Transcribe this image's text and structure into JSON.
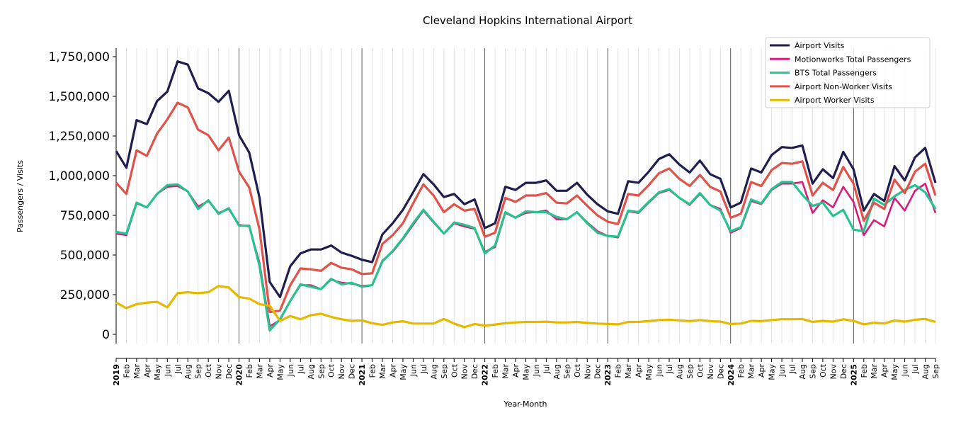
{
  "chart_data": {
    "type": "line",
    "title": "Cleveland Hopkins International Airport",
    "xlabel": "Year-Month",
    "ylabel": "Passengers / Visits",
    "ylim": [
      -60000,
      1800000
    ],
    "y_ticks": [
      0,
      250000,
      500000,
      750000,
      1000000,
      1250000,
      1500000,
      1750000
    ],
    "y_tick_labels": [
      "0",
      "250,000",
      "500,000",
      "750,000",
      "1,000,000",
      "1,250,000",
      "1,500,000",
      "1,750,000"
    ],
    "grid": "vertical monthly gridlines, darker lines at each January",
    "legend_position": "top-right",
    "x_tick_labels": [
      "2019",
      "Feb",
      "Mar",
      "Apr",
      "May",
      "Jun",
      "Jul",
      "Aug",
      "Sep",
      "Oct",
      "Nov",
      "Dec",
      "2020",
      "Feb",
      "Mar",
      "Apr",
      "May",
      "Jun",
      "Jul",
      "Aug",
      "Sep",
      "Oct",
      "Nov",
      "Dec",
      "2021",
      "Feb",
      "Mar",
      "Apr",
      "May",
      "Jun",
      "Jul",
      "Aug",
      "Sep",
      "Oct",
      "Nov",
      "Dec",
      "2022",
      "Feb",
      "Mar",
      "Apr",
      "May",
      "Jun",
      "Jul",
      "Aug",
      "Sep",
      "Oct",
      "Nov",
      "Dec",
      "2023",
      "Feb",
      "Mar",
      "Apr",
      "May",
      "Jun",
      "Jul",
      "Aug",
      "Sep",
      "Oct",
      "Nov",
      "Dec",
      "2024",
      "Feb",
      "Mar",
      "Apr",
      "May",
      "Jun",
      "Jul",
      "Aug",
      "Sep",
      "Oct",
      "Nov",
      "Dec",
      "2025",
      "Feb",
      "Mar",
      "Apr",
      "May",
      "Jun",
      "Jul",
      "Aug",
      "Sep"
    ],
    "series": [
      {
        "name": "Airport Visits",
        "color": "#1f1f4f",
        "values": [
          1155000,
          1050000,
          1350000,
          1325000,
          1470000,
          1530000,
          1720000,
          1700000,
          1550000,
          1520000,
          1465000,
          1535000,
          1255000,
          1145000,
          860000,
          330000,
          235000,
          430000,
          510000,
          535000,
          535000,
          560000,
          515000,
          495000,
          470000,
          455000,
          630000,
          700000,
          785000,
          895000,
          1010000,
          945000,
          865000,
          885000,
          820000,
          850000,
          670000,
          700000,
          930000,
          910000,
          955000,
          955000,
          970000,
          905000,
          905000,
          955000,
          880000,
          820000,
          775000,
          760000,
          965000,
          955000,
          1025000,
          1105000,
          1135000,
          1070000,
          1020000,
          1095000,
          1010000,
          980000,
          800000,
          830000,
          1045000,
          1020000,
          1130000,
          1180000,
          1175000,
          1190000,
          950000,
          1040000,
          985000,
          1150000,
          1040000,
          780000,
          885000,
          840000,
          1060000,
          970000,
          1115000,
          1175000,
          955000
        ]
      },
      {
        "name": "Motionworks Total Passengers",
        "color": "#d81b7a",
        "values": [
          635000,
          625000,
          825000,
          800000,
          885000,
          930000,
          935000,
          900000,
          805000,
          840000,
          765000,
          790000,
          690000,
          680000,
          450000,
          50000,
          90000,
          210000,
          310000,
          310000,
          285000,
          345000,
          325000,
          320000,
          305000,
          310000,
          465000,
          520000,
          600000,
          690000,
          780000,
          705000,
          635000,
          700000,
          680000,
          665000,
          520000,
          550000,
          765000,
          735000,
          765000,
          770000,
          780000,
          725000,
          725000,
          770000,
          705000,
          650000,
          620000,
          610000,
          775000,
          765000,
          830000,
          890000,
          910000,
          860000,
          815000,
          885000,
          815000,
          790000,
          640000,
          670000,
          840000,
          820000,
          910000,
          950000,
          950000,
          960000,
          765000,
          845000,
          800000,
          930000,
          835000,
          625000,
          720000,
          680000,
          860000,
          780000,
          905000,
          950000,
          765000
        ]
      },
      {
        "name": "BTS Total Passengers",
        "color": "#26c28f",
        "values": [
          645000,
          635000,
          830000,
          800000,
          885000,
          940000,
          945000,
          900000,
          790000,
          845000,
          760000,
          795000,
          685000,
          685000,
          430000,
          25000,
          95000,
          210000,
          315000,
          300000,
          285000,
          350000,
          315000,
          325000,
          300000,
          310000,
          460000,
          525000,
          605000,
          700000,
          785000,
          710000,
          635000,
          705000,
          690000,
          670000,
          510000,
          560000,
          770000,
          735000,
          775000,
          770000,
          770000,
          740000,
          725000,
          770000,
          700000,
          640000,
          620000,
          615000,
          780000,
          770000,
          835000,
          895000,
          915000,
          860000,
          820000,
          890000,
          815000,
          780000,
          650000,
          675000,
          850000,
          825000,
          915000,
          960000,
          960000,
          880000,
          810000,
          830000,
          745000,
          785000,
          660000,
          650000,
          855000,
          815000,
          870000,
          910000,
          940000,
          895000,
          790000
        ]
      },
      {
        "name": "Airport Non-Worker Visits",
        "color": "#e0524a",
        "values": [
          955000,
          885000,
          1160000,
          1125000,
          1265000,
          1355000,
          1460000,
          1430000,
          1290000,
          1255000,
          1160000,
          1240000,
          1025000,
          925000,
          660000,
          140000,
          150000,
          310000,
          415000,
          410000,
          400000,
          450000,
          420000,
          410000,
          380000,
          385000,
          570000,
          625000,
          700000,
          825000,
          945000,
          875000,
          770000,
          820000,
          780000,
          790000,
          615000,
          640000,
          860000,
          835000,
          875000,
          875000,
          890000,
          830000,
          825000,
          875000,
          810000,
          750000,
          710000,
          695000,
          885000,
          875000,
          940000,
          1015000,
          1045000,
          980000,
          935000,
          1005000,
          930000,
          900000,
          735000,
          760000,
          960000,
          935000,
          1035000,
          1080000,
          1075000,
          1090000,
          875000,
          955000,
          910000,
          1055000,
          950000,
          715000,
          830000,
          790000,
          975000,
          890000,
          1025000,
          1075000,
          875000
        ]
      },
      {
        "name": "Airport Worker Visits",
        "color": "#e6b800",
        "values": [
          200000,
          165000,
          190000,
          200000,
          205000,
          170000,
          260000,
          265000,
          260000,
          265000,
          305000,
          295000,
          235000,
          225000,
          190000,
          180000,
          85000,
          115000,
          95000,
          120000,
          130000,
          110000,
          95000,
          85000,
          88000,
          70000,
          60000,
          75000,
          82000,
          68000,
          68000,
          68000,
          97000,
          68000,
          45000,
          65000,
          55000,
          62000,
          70000,
          75000,
          78000,
          78000,
          80000,
          75000,
          75000,
          78000,
          72000,
          68000,
          65000,
          63000,
          78000,
          78000,
          83000,
          90000,
          92000,
          88000,
          83000,
          90000,
          83000,
          80000,
          65000,
          68000,
          85000,
          83000,
          90000,
          95000,
          95000,
          97000,
          78000,
          85000,
          80000,
          95000,
          85000,
          63000,
          73000,
          68000,
          88000,
          80000,
          92000,
          97000,
          78000
        ]
      }
    ]
  }
}
